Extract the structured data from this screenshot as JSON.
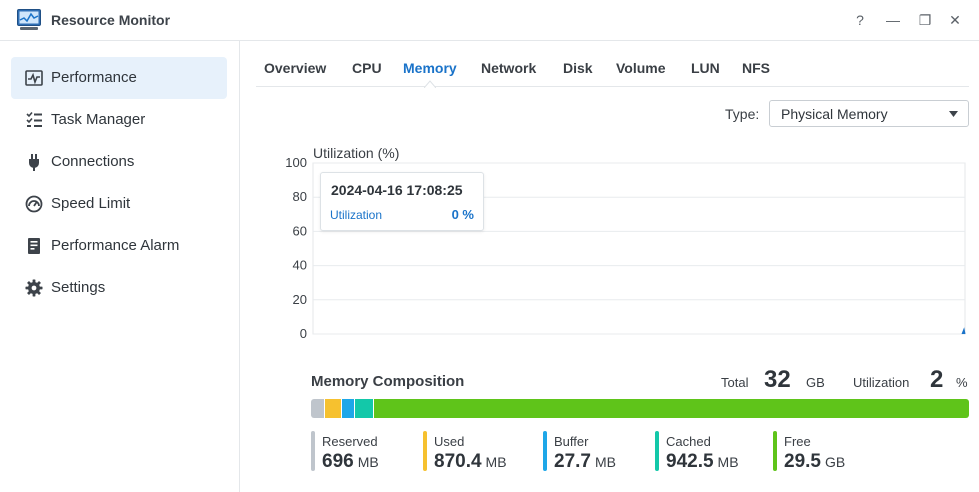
{
  "window": {
    "title": "Resource Monitor",
    "controls": {
      "help": "?",
      "minimize": "—",
      "restore": "❐",
      "close": "✕"
    }
  },
  "sidebar": {
    "items": [
      {
        "label": "Performance",
        "icon": "performance-icon",
        "active": true
      },
      {
        "label": "Task Manager",
        "icon": "task-manager-icon",
        "active": false
      },
      {
        "label": "Connections",
        "icon": "plug-icon",
        "active": false
      },
      {
        "label": "Speed Limit",
        "icon": "speedometer-icon",
        "active": false
      },
      {
        "label": "Performance Alarm",
        "icon": "alarm-icon",
        "active": false
      },
      {
        "label": "Settings",
        "icon": "gear-icon",
        "active": false
      }
    ]
  },
  "tabs": [
    {
      "label": "Overview",
      "active": false
    },
    {
      "label": "CPU",
      "active": false
    },
    {
      "label": "Memory",
      "active": true
    },
    {
      "label": "Network",
      "active": false
    },
    {
      "label": "Disk",
      "active": false
    },
    {
      "label": "Volume",
      "active": false
    },
    {
      "label": "LUN",
      "active": false
    },
    {
      "label": "NFS",
      "active": false
    }
  ],
  "type_filter": {
    "label": "Type:",
    "value": "Physical Memory"
  },
  "chart_data": {
    "type": "line",
    "ylabel": "Utilization (%)",
    "ylim": [
      0,
      100
    ],
    "yticks": [
      "0",
      "20",
      "40",
      "60",
      "80",
      "100"
    ],
    "grid": true,
    "series": [
      {
        "name": "Utilization",
        "values": [
          0
        ]
      }
    ],
    "tooltip": {
      "time": "2024-04-16 17:08:25",
      "label": "Utilization",
      "value": "0 %"
    }
  },
  "composition": {
    "title": "Memory Composition",
    "total_label": "Total",
    "total_value": "32",
    "total_unit": "GB",
    "util_label": "Utilization",
    "util_value": "2",
    "util_unit": "%",
    "segments": [
      {
        "name": "Reserved",
        "value": "696",
        "unit": "MB",
        "color": "#bfc5cc"
      },
      {
        "name": "Used",
        "value": "870.4",
        "unit": "MB",
        "color": "#f6c12f"
      },
      {
        "name": "Buffer",
        "value": "27.7",
        "unit": "MB",
        "color": "#1ea7e8"
      },
      {
        "name": "Cached",
        "value": "942.5",
        "unit": "MB",
        "color": "#13c8a9"
      },
      {
        "name": "Free",
        "value": "29.5",
        "unit": "GB",
        "color": "#5fc41a"
      }
    ]
  },
  "colors": {
    "accent": "#1a73c9",
    "active_nav_bg": "#e7f1fb"
  }
}
